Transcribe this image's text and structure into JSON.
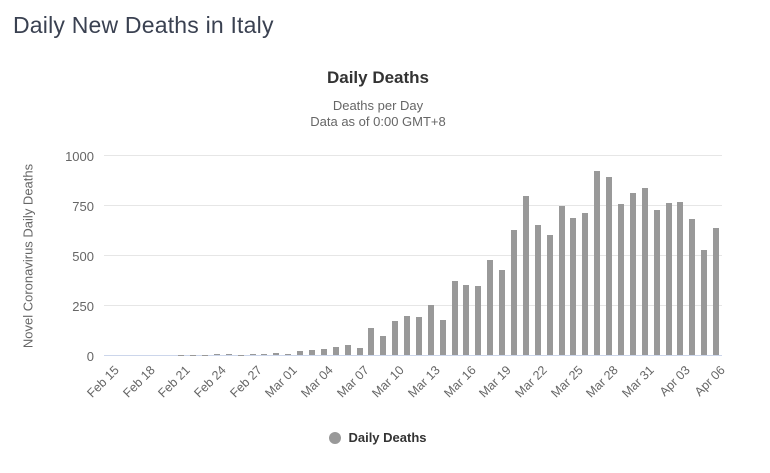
{
  "page": {
    "title": "Daily New Deaths in Italy"
  },
  "chart": {
    "title": "Daily Deaths",
    "subtitle_line1": "Deaths per Day",
    "subtitle_line2": "Data as of 0:00 GMT+8",
    "legend_label": "Daily Deaths",
    "colors": {
      "bar": "#999999",
      "gridline": "#e6e6e6",
      "axis_line": "#ccd6eb",
      "tick_text": "#666666",
      "title_text": "#333333",
      "subtitle_text": "#666666",
      "page_title_text": "#3a4151"
    }
  },
  "chart_data": {
    "type": "bar",
    "title": "Daily Deaths",
    "subtitle": "Deaths per Day — Data as of 0:00 GMT+8",
    "xlabel": "",
    "ylabel": "Novel Coronavirus Daily Deaths",
    "ylim": [
      0,
      1000
    ],
    "yticks": [
      0,
      250,
      500,
      750,
      1000
    ],
    "xtick_every": 3,
    "grid": true,
    "legend_position": "bottom",
    "legend": [
      "Daily Deaths"
    ],
    "categories": [
      "Feb 15",
      "Feb 16",
      "Feb 17",
      "Feb 18",
      "Feb 19",
      "Feb 20",
      "Feb 21",
      "Feb 22",
      "Feb 23",
      "Feb 24",
      "Feb 25",
      "Feb 26",
      "Feb 27",
      "Feb 28",
      "Feb 29",
      "Mar 01",
      "Mar 02",
      "Mar 03",
      "Mar 04",
      "Mar 05",
      "Mar 06",
      "Mar 07",
      "Mar 08",
      "Mar 09",
      "Mar 10",
      "Mar 11",
      "Mar 12",
      "Mar 13",
      "Mar 14",
      "Mar 15",
      "Mar 16",
      "Mar 17",
      "Mar 18",
      "Mar 19",
      "Mar 20",
      "Mar 21",
      "Mar 22",
      "Mar 23",
      "Mar 24",
      "Mar 25",
      "Mar 26",
      "Mar 27",
      "Mar 28",
      "Mar 29",
      "Mar 30",
      "Mar 31",
      "Apr 01",
      "Apr 02",
      "Apr 03",
      "Apr 04",
      "Apr 05",
      "Apr 06"
    ],
    "values": [
      0,
      0,
      0,
      0,
      0,
      0,
      1,
      1,
      2,
      3,
      4,
      1,
      5,
      4,
      8,
      5,
      18,
      27,
      28,
      41,
      49,
      36,
      133,
      97,
      168,
      196,
      189,
      250,
      175,
      368,
      349,
      345,
      475,
      427,
      627,
      793,
      651,
      601,
      743,
      683,
      712,
      919,
      889,
      756,
      812,
      837,
      727,
      760,
      766,
      681,
      525,
      636
    ]
  }
}
